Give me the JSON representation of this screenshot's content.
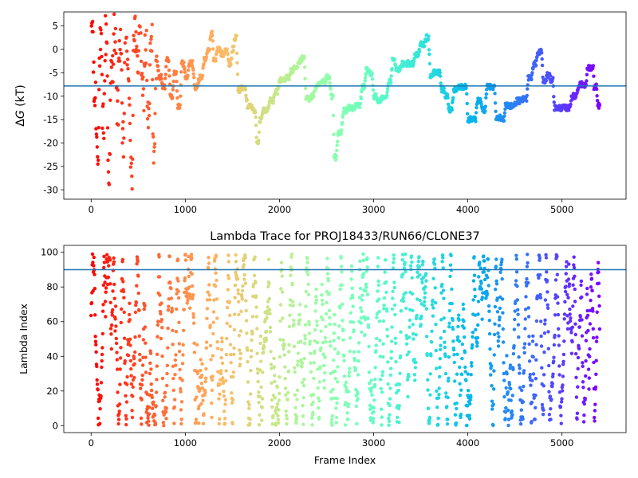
{
  "chart_data": [
    {
      "type": "scatter",
      "title": "",
      "xlabel": "",
      "ylabel": "ΔG (kT)",
      "ylabel_parts": {
        "delta": "Δ",
        "var": "G",
        "unit": " (kT)"
      },
      "xlim": [
        -290,
        5680
      ],
      "ylim": [
        -32,
        8
      ],
      "xticks": [
        0,
        1000,
        2000,
        3000,
        4000,
        5000
      ],
      "yticks": [
        5,
        0,
        -5,
        -10,
        -15,
        -20,
        -25,
        -30
      ],
      "hline": -7.8,
      "colormap": "rainbow",
      "color_scale": "frame index: red (0) → violet (5400)",
      "n_frames": 5400,
      "keypoints": [
        [
          0,
          5
        ],
        [
          30,
          -10
        ],
        [
          60,
          -20
        ],
        [
          90,
          0
        ],
        [
          120,
          -15
        ],
        [
          150,
          3
        ],
        [
          180,
          -25
        ],
        [
          210,
          -5
        ],
        [
          240,
          4
        ],
        [
          270,
          -12
        ],
        [
          300,
          2
        ],
        [
          330,
          -20
        ],
        [
          360,
          4
        ],
        [
          390,
          -8
        ],
        [
          420,
          -27
        ],
        [
          450,
          5
        ],
        [
          480,
          -3
        ],
        [
          510,
          6
        ],
        [
          540,
          -10
        ],
        [
          570,
          0
        ],
        [
          600,
          -15
        ],
        [
          630,
          1
        ],
        [
          660,
          -21
        ],
        [
          690,
          -3
        ],
        [
          720,
          -6
        ],
        [
          760,
          -8
        ],
        [
          800,
          -2
        ],
        [
          840,
          -10
        ],
        [
          880,
          -5
        ],
        [
          920,
          -12
        ],
        [
          960,
          -3
        ],
        [
          1000,
          -6
        ],
        [
          1040,
          -3
        ],
        [
          1100,
          -8
        ],
        [
          1150,
          -6
        ],
        [
          1200,
          -2
        ],
        [
          1240,
          0
        ],
        [
          1270,
          3.3
        ],
        [
          1300,
          -2
        ],
        [
          1340,
          0
        ],
        [
          1380,
          -1
        ],
        [
          1420,
          0
        ],
        [
          1460,
          -3
        ],
        [
          1500,
          0
        ],
        [
          1520,
          2.5
        ],
        [
          1560,
          -8.7
        ],
        [
          1600,
          -8
        ],
        [
          1660,
          -12
        ],
        [
          1720,
          -13
        ],
        [
          1760,
          -20.2
        ],
        [
          1790,
          -15
        ],
        [
          1820,
          -13
        ],
        [
          1900,
          -11
        ],
        [
          1960,
          -9
        ],
        [
          2000,
          -6.5
        ],
        [
          2080,
          -6
        ],
        [
          2120,
          -4.5
        ],
        [
          2160,
          -4
        ],
        [
          2200,
          -2.5
        ],
        [
          2240,
          -2
        ],
        [
          2280,
          -10.5
        ],
        [
          2340,
          -10
        ],
        [
          2380,
          -8
        ],
        [
          2420,
          -7.5
        ],
        [
          2460,
          -7
        ],
        [
          2500,
          -6
        ],
        [
          2550,
          -10
        ],
        [
          2580,
          -23
        ],
        [
          2620,
          -18
        ],
        [
          2680,
          -13
        ],
        [
          2740,
          -12.5
        ],
        [
          2820,
          -12
        ],
        [
          2880,
          -8
        ],
        [
          2920,
          -4.5
        ],
        [
          2960,
          -5
        ],
        [
          3000,
          -10
        ],
        [
          3040,
          -11
        ],
        [
          3100,
          -10
        ],
        [
          3160,
          -7
        ],
        [
          3200,
          -2.5
        ],
        [
          3240,
          -4.5
        ],
        [
          3300,
          -3
        ],
        [
          3360,
          -3
        ],
        [
          3400,
          -3
        ],
        [
          3440,
          -1
        ],
        [
          3500,
          1
        ],
        [
          3560,
          2.5
        ],
        [
          3600,
          -5.5
        ],
        [
          3640,
          -5
        ],
        [
          3680,
          -5
        ],
        [
          3720,
          -8.5
        ],
        [
          3760,
          -10
        ],
        [
          3800,
          -12.8
        ],
        [
          3850,
          -8.5
        ],
        [
          3900,
          -8
        ],
        [
          3960,
          -8
        ],
        [
          4000,
          -15
        ],
        [
          4060,
          -15
        ],
        [
          4100,
          -11
        ],
        [
          4160,
          -13
        ],
        [
          4200,
          -8
        ],
        [
          4260,
          -8
        ],
        [
          4300,
          -14.5
        ],
        [
          4360,
          -14.7
        ],
        [
          4400,
          -12
        ],
        [
          4460,
          -12
        ],
        [
          4520,
          -11
        ],
        [
          4600,
          -10.5
        ],
        [
          4640,
          -6
        ],
        [
          4700,
          -3
        ],
        [
          4740,
          -1
        ],
        [
          4760,
          -0.5
        ],
        [
          4800,
          -7
        ],
        [
          4840,
          -5.5
        ],
        [
          4880,
          -6.5
        ],
        [
          4920,
          -12.5
        ],
        [
          5000,
          -12.5
        ],
        [
          5060,
          -12.5
        ],
        [
          5100,
          -10
        ],
        [
          5180,
          -7.5
        ],
        [
          5240,
          -7.5
        ],
        [
          5270,
          -4
        ],
        [
          5320,
          -4
        ],
        [
          5340,
          -8
        ],
        [
          5380,
          -12
        ],
        [
          5400,
          -12
        ]
      ]
    },
    {
      "type": "scatter",
      "title": "Lambda Trace for PROJ18433/RUN66/CLONE37",
      "xlabel": "Frame Index",
      "ylabel": "Lambda Index",
      "xlim": [
        -290,
        5680
      ],
      "ylim": [
        -4,
        104
      ],
      "xticks": [
        0,
        1000,
        2000,
        3000,
        4000,
        5000
      ],
      "yticks": [
        0,
        20,
        40,
        60,
        80,
        100
      ],
      "hline": 90,
      "colormap": "rainbow",
      "color_scale": "frame index: red (0) → violet (5400)",
      "n_frames": 5400,
      "range": [
        0,
        99
      ]
    }
  ]
}
